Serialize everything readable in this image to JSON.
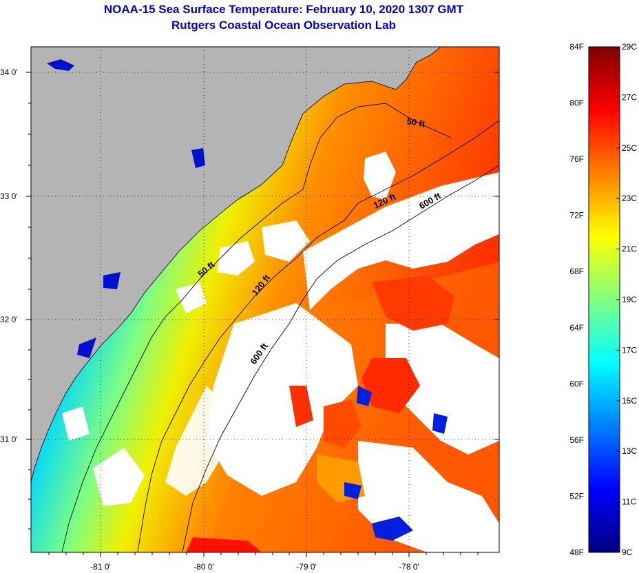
{
  "header": {
    "title_line1": "NOAA-15 Sea Surface Temperature:  February 10, 2020 1307 GMT",
    "title_line2": "Rutgers Coastal Ocean Observation Lab"
  },
  "map": {
    "y_ticks": [
      {
        "label": "34 0'",
        "value": 34
      },
      {
        "label": "33 0'",
        "value": 33
      },
      {
        "label": "32 0'",
        "value": 32
      },
      {
        "label": "31 0'",
        "value": 31
      }
    ],
    "x_ticks": [
      {
        "label": "-81 0'",
        "value": -81
      },
      {
        "label": "-80 0'",
        "value": -80
      },
      {
        "label": "-79 0'",
        "value": -79
      },
      {
        "label": "-78 0'",
        "value": -78
      }
    ],
    "isobath_labels": [
      "50 ft",
      "120 ft",
      "600 ft",
      "50 ft",
      "120 ft",
      "600 ft"
    ],
    "colors": {
      "land": "#b4b4b4",
      "no_data": "#ffffff",
      "contour": "#000000",
      "grid": "#000000"
    }
  },
  "colorbar": {
    "fahrenheit": [
      "84F",
      "80F",
      "76F",
      "72F",
      "68F",
      "64F",
      "60F",
      "56F",
      "52F",
      "48F"
    ],
    "celsius": [
      "29C",
      "27C",
      "25C",
      "23C",
      "21C",
      "19C",
      "17C",
      "15C",
      "13C",
      "11C",
      "9C"
    ],
    "stops": [
      "#00007f",
      "#0000ff",
      "#0080ff",
      "#00ffff",
      "#80ff80",
      "#ffff00",
      "#ff8000",
      "#ff0000",
      "#7f0000"
    ]
  }
}
